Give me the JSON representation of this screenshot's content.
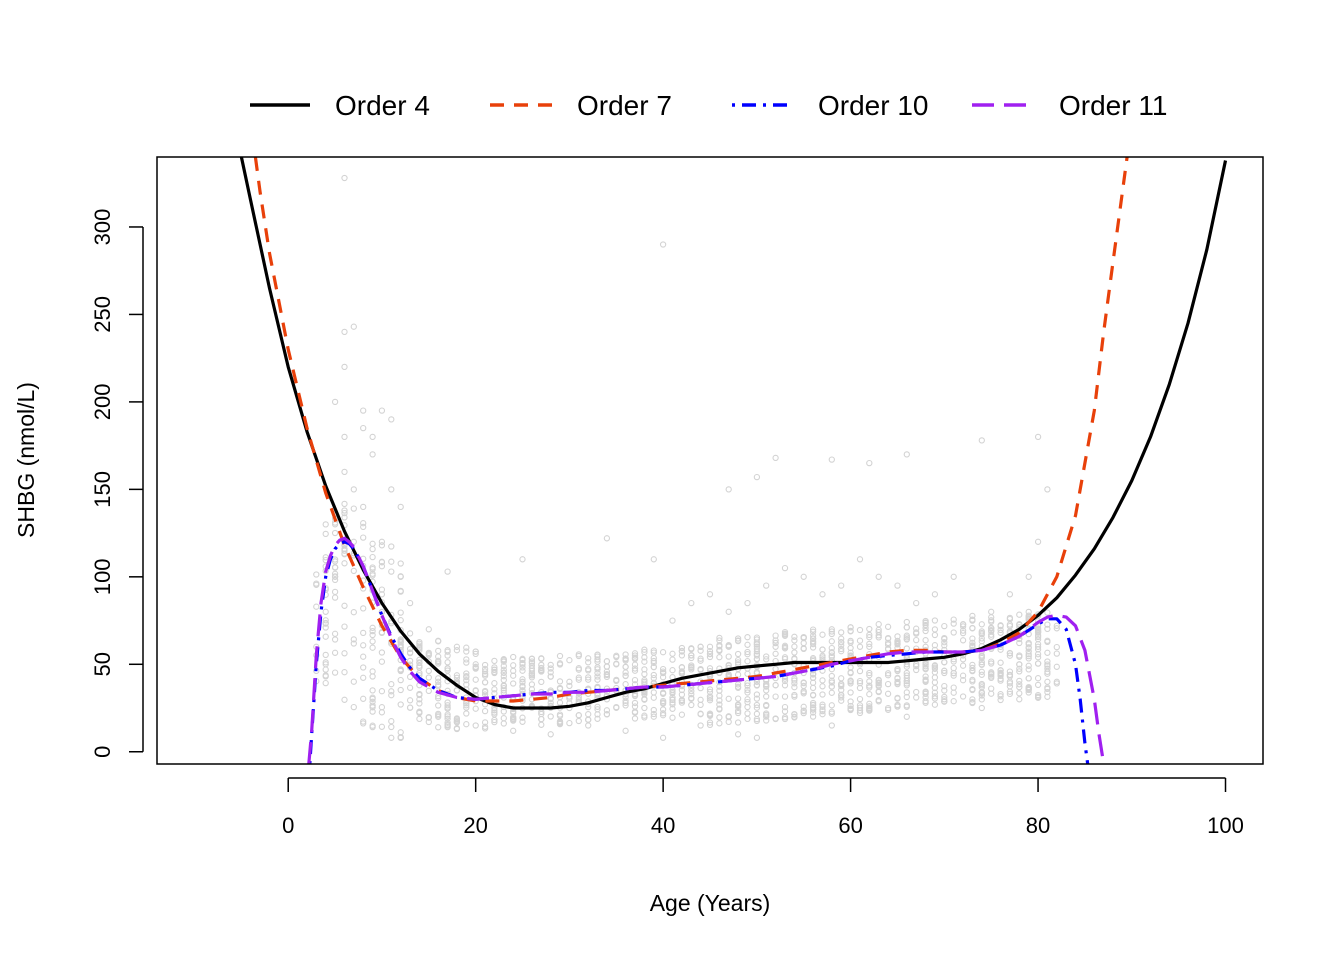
{
  "chart_data": {
    "type": "scatter",
    "title": "",
    "xlabel": "Age (Years)",
    "ylabel": "SHBG (nmol/L)",
    "xlim": [
      -14,
      104
    ],
    "ylim": [
      -7,
      340
    ],
    "x_ticks": [
      0,
      20,
      40,
      60,
      80,
      100
    ],
    "x_tick_labels": [
      "0",
      "20",
      "40",
      "60",
      "80",
      "100"
    ],
    "y_ticks": [
      0,
      50,
      100,
      150,
      200,
      250,
      300
    ],
    "y_tick_labels": [
      "0",
      "50",
      "100",
      "150",
      "200",
      "250",
      "300"
    ],
    "grid": false,
    "legend_position": "top, horizontal, outside plot",
    "points_color": "#d3d3d3",
    "points_description": "Dense cloud of raw SHBG observations (open circles), densest at ages 3-82 with values mostly 10-150 nmol/L; outliers near (6, 328) and (40, 290).",
    "points_sample": [
      [
        6,
        328
      ],
      [
        40,
        290
      ],
      [
        6,
        240
      ],
      [
        7,
        243
      ],
      [
        8,
        195
      ],
      [
        10,
        195
      ],
      [
        11,
        190
      ],
      [
        9,
        180
      ],
      [
        5,
        200
      ],
      [
        6,
        160
      ],
      [
        7,
        150
      ],
      [
        8,
        140
      ],
      [
        10,
        120
      ],
      [
        12,
        100
      ],
      [
        13,
        85
      ],
      [
        15,
        70
      ],
      [
        18,
        60
      ],
      [
        20,
        50
      ],
      [
        22,
        45
      ],
      [
        25,
        40
      ],
      [
        28,
        35
      ],
      [
        30,
        40
      ],
      [
        33,
        45
      ],
      [
        35,
        50
      ],
      [
        37,
        55
      ],
      [
        40,
        45
      ],
      [
        43,
        55
      ],
      [
        45,
        60
      ],
      [
        48,
        50
      ],
      [
        50,
        55
      ],
      [
        52,
        60
      ],
      [
        55,
        65
      ],
      [
        58,
        70
      ],
      [
        60,
        55
      ],
      [
        62,
        60
      ],
      [
        64,
        65
      ],
      [
        66,
        55
      ],
      [
        68,
        60
      ],
      [
        70,
        65
      ],
      [
        72,
        55
      ],
      [
        74,
        50
      ],
      [
        76,
        60
      ],
      [
        78,
        55
      ],
      [
        80,
        60
      ],
      [
        81,
        150
      ],
      [
        80,
        180
      ],
      [
        74,
        178
      ],
      [
        62,
        165
      ],
      [
        58,
        167
      ],
      [
        66,
        170
      ],
      [
        52,
        168
      ],
      [
        47,
        150
      ],
      [
        50,
        157
      ],
      [
        34,
        122
      ],
      [
        39,
        110
      ],
      [
        25,
        110
      ],
      [
        17,
        103
      ],
      [
        14,
        30
      ],
      [
        16,
        20
      ],
      [
        20,
        15
      ],
      [
        24,
        12
      ],
      [
        28,
        10
      ],
      [
        32,
        15
      ],
      [
        36,
        12
      ],
      [
        40,
        8
      ],
      [
        44,
        15
      ],
      [
        48,
        10
      ],
      [
        50,
        8
      ],
      [
        54,
        20
      ],
      [
        58,
        15
      ],
      [
        62,
        25
      ],
      [
        66,
        20
      ],
      [
        70,
        30
      ],
      [
        74,
        25
      ],
      [
        78,
        30
      ],
      [
        81,
        40
      ],
      [
        4,
        50
      ],
      [
        4,
        80
      ],
      [
        5,
        100
      ],
      [
        3,
        60
      ],
      [
        12,
        60
      ],
      [
        14,
        45
      ],
      [
        16,
        40
      ],
      [
        18,
        35
      ],
      [
        22,
        25
      ],
      [
        26,
        30
      ],
      [
        30,
        25
      ],
      [
        34,
        30
      ],
      [
        38,
        35
      ],
      [
        42,
        40
      ],
      [
        46,
        45
      ],
      [
        50,
        40
      ],
      [
        54,
        45
      ],
      [
        58,
        50
      ],
      [
        62,
        45
      ],
      [
        66,
        50
      ],
      [
        70,
        45
      ],
      [
        74,
        55
      ],
      [
        78,
        50
      ],
      [
        80,
        120
      ],
      [
        79,
        100
      ],
      [
        77,
        90
      ],
      [
        75,
        80
      ],
      [
        73,
        75
      ],
      [
        71,
        100
      ],
      [
        69,
        90
      ],
      [
        67,
        85
      ],
      [
        65,
        95
      ],
      [
        63,
        100
      ],
      [
        61,
        110
      ],
      [
        59,
        95
      ],
      [
        57,
        90
      ],
      [
        55,
        100
      ],
      [
        53,
        105
      ],
      [
        51,
        95
      ],
      [
        49,
        85
      ],
      [
        47,
        80
      ],
      [
        45,
        90
      ],
      [
        43,
        85
      ],
      [
        41,
        75
      ],
      [
        11,
        150
      ],
      [
        12,
        140
      ],
      [
        9,
        170
      ],
      [
        8,
        185
      ],
      [
        6,
        220
      ],
      [
        6,
        180
      ],
      [
        7,
        120
      ],
      [
        10,
        90
      ]
    ],
    "series": [
      {
        "name": "Order 4",
        "color": "#000000",
        "dash": "solid",
        "x": [
          -5,
          -4,
          -2,
          0,
          2,
          4,
          6,
          8,
          10,
          12,
          14,
          16,
          18,
          20,
          22,
          24,
          26,
          28,
          30,
          32,
          34,
          36,
          38,
          40,
          42,
          44,
          46,
          48,
          50,
          52,
          54,
          56,
          58,
          60,
          62,
          64,
          66,
          68,
          70,
          72,
          74,
          76,
          78,
          80,
          82,
          84,
          86,
          88,
          90,
          92,
          94,
          96,
          98,
          100
        ],
        "y": [
          340,
          315,
          265,
          220,
          183,
          152,
          126,
          104,
          85,
          69,
          56,
          46,
          38,
          31,
          27,
          25,
          25,
          25,
          26,
          28,
          31,
          34,
          36,
          39,
          42,
          44,
          46,
          48,
          49,
          50,
          51,
          51,
          51,
          51,
          51,
          51,
          52,
          53,
          54,
          56,
          59,
          64,
          70,
          78,
          88,
          101,
          116,
          134,
          155,
          180,
          210,
          245,
          287,
          338
        ]
      },
      {
        "name": "Order 7",
        "color": "#e8400a",
        "dash": "dashed",
        "x": [
          -3.5,
          -3,
          -2,
          0,
          2,
          4,
          6,
          8,
          10,
          12,
          14,
          16,
          18,
          20,
          22,
          24,
          26,
          28,
          30,
          32,
          34,
          36,
          38,
          40,
          42,
          44,
          46,
          48,
          50,
          52,
          54,
          56,
          58,
          60,
          62,
          64,
          66,
          68,
          70,
          72,
          74,
          76,
          78,
          80,
          82,
          84,
          86,
          87,
          88,
          89,
          89.5
        ],
        "y": [
          340,
          320,
          285,
          230,
          185,
          148,
          118,
          94,
          72,
          54,
          42,
          35,
          31,
          29,
          29,
          29,
          30,
          31,
          33,
          34,
          35,
          36,
          37,
          38,
          39,
          40,
          41,
          42,
          43,
          45,
          47,
          49,
          51,
          53,
          55,
          57,
          58,
          58,
          57,
          57,
          58,
          62,
          68,
          80,
          100,
          135,
          195,
          240,
          280,
          320,
          340
        ]
      },
      {
        "name": "Order 10",
        "color": "#0000ff",
        "dash": "dotdash",
        "x": [
          2.3,
          2.5,
          3,
          3.5,
          4,
          4.5,
          5,
          5.5,
          6,
          6.5,
          7,
          8,
          9,
          10,
          11,
          12,
          13,
          14,
          16,
          18,
          20,
          22,
          24,
          26,
          28,
          30,
          32,
          34,
          36,
          38,
          40,
          42,
          44,
          46,
          48,
          50,
          52,
          54,
          56,
          58,
          60,
          62,
          64,
          66,
          68,
          70,
          72,
          74,
          76,
          78,
          80,
          81,
          82,
          83,
          84,
          84.5,
          85,
          85.3
        ],
        "y": [
          -7,
          10,
          50,
          80,
          100,
          110,
          116,
          119,
          120,
          119,
          116,
          106,
          92,
          78,
          66,
          56,
          48,
          42,
          35,
          31,
          30,
          31,
          32,
          33,
          34,
          34,
          35,
          35,
          36,
          37,
          37,
          38,
          39,
          40,
          41,
          42,
          43,
          45,
          47,
          49,
          52,
          54,
          55,
          56,
          57,
          57,
          57,
          58,
          61,
          66,
          73,
          76,
          76,
          70,
          50,
          30,
          5,
          -7
        ]
      },
      {
        "name": "Order 11",
        "color": "#a020f0",
        "dash": "longdash",
        "x": [
          2.2,
          2.5,
          3,
          3.5,
          4,
          4.5,
          5,
          5.5,
          6,
          6.5,
          7,
          8,
          9,
          10,
          11,
          12,
          13,
          14,
          16,
          18,
          20,
          22,
          24,
          26,
          28,
          30,
          32,
          34,
          36,
          38,
          40,
          42,
          44,
          46,
          48,
          50,
          52,
          54,
          56,
          58,
          60,
          62,
          64,
          66,
          68,
          70,
          72,
          74,
          76,
          78,
          80,
          81,
          82,
          83,
          84,
          85,
          86,
          86.5,
          87
        ],
        "y": [
          -7,
          12,
          55,
          85,
          103,
          112,
          118,
          121,
          122,
          120,
          117,
          106,
          92,
          78,
          65,
          54,
          46,
          40,
          34,
          31,
          30,
          31,
          32,
          33,
          33,
          34,
          34,
          35,
          36,
          37,
          37,
          38,
          39,
          40,
          41,
          42,
          43,
          45,
          47,
          50,
          52,
          54,
          56,
          57,
          57,
          57,
          57,
          58,
          61,
          66,
          74,
          77,
          78,
          77,
          72,
          58,
          30,
          10,
          -7
        ]
      }
    ]
  }
}
